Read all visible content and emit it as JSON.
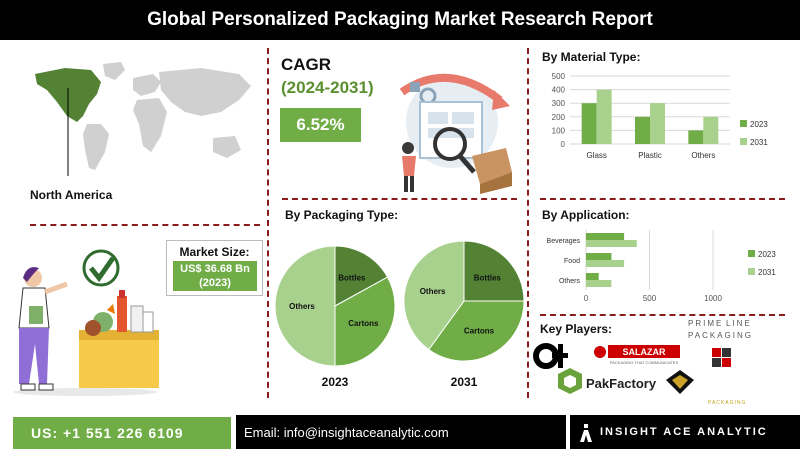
{
  "title": "Global Personalized Packaging Market Research Report",
  "region": {
    "label": "North America"
  },
  "cagr": {
    "title": "CAGR",
    "period": "(2024-2031)",
    "value": "6.52%"
  },
  "market_size": {
    "label": "Market Size:",
    "value_line1": "US$ 36.68 Bn",
    "value_line2": "(2023)"
  },
  "sections": {
    "material": "By Material Type:",
    "packaging": "By Packaging Type:",
    "application": "By Application:",
    "players": "Key Players:"
  },
  "colors": {
    "dark_green": "#548235",
    "mid_green": "#70ad47",
    "light_green": "#a9d18e",
    "divider": "#8b1c1c"
  },
  "chart_data": [
    {
      "type": "bar",
      "title": "By Material Type:",
      "categories": [
        "Glass",
        "Plastic",
        "Others"
      ],
      "series": [
        {
          "name": "2023",
          "values": [
            300,
            200,
            100
          ],
          "color": "#70ad47"
        },
        {
          "name": "2031",
          "values": [
            400,
            300,
            200
          ],
          "color": "#a9d18e"
        }
      ],
      "ylim": [
        0,
        500
      ],
      "yticks": [
        0,
        100,
        200,
        300,
        400,
        500
      ],
      "grid": true,
      "legend": "right"
    },
    {
      "type": "bar",
      "orientation": "horizontal",
      "title": "By Application:",
      "categories": [
        "Beverages",
        "Food",
        "Others"
      ],
      "series": [
        {
          "name": "2023",
          "values": [
            300,
            200,
            100
          ],
          "color": "#70ad47"
        },
        {
          "name": "2031",
          "values": [
            400,
            300,
            200
          ],
          "color": "#a9d18e"
        }
      ],
      "xlim": [
        0,
        1000
      ],
      "xticks": [
        0,
        500,
        1000
      ],
      "grid": true,
      "legend": "right"
    },
    {
      "type": "pie",
      "title": "By Packaging Type:",
      "pies": [
        {
          "label": "2023",
          "slices": [
            {
              "name": "Bottles",
              "value": 17,
              "color": "#548235"
            },
            {
              "name": "Cartons",
              "value": 33,
              "color": "#70ad47"
            },
            {
              "name": "Others",
              "value": 50,
              "color": "#a9d18e"
            }
          ]
        },
        {
          "label": "2031",
          "slices": [
            {
              "name": "Bottles",
              "value": 25,
              "color": "#548235"
            },
            {
              "name": "Cartons",
              "value": 35,
              "color": "#70ad47"
            },
            {
              "name": "Others",
              "value": 40,
              "color": "#a9d18e"
            }
          ]
        }
      ]
    }
  ],
  "players": {
    "logos": [
      "Owens-Illinois",
      "Salazar",
      "Prime Line Packaging",
      "PakFactory",
      "FABX",
      "Packaging"
    ],
    "salazar_text": "SALAZAR",
    "salazar_tagline": "PACKAGING THAT COMMUNICATES",
    "primeline_text_1": "PRIME",
    "primeline_text_2": "LINE",
    "primeline_sub": "PACKAGING",
    "pakfactory_text": "PakFactory",
    "packaging_text": "PACKAGING"
  },
  "footer": {
    "phone": "US: +1 551 226 6109",
    "email": "Email: info@insightaceanalytic.com",
    "brand": "INSIGHT ACE ANALYTIC"
  }
}
